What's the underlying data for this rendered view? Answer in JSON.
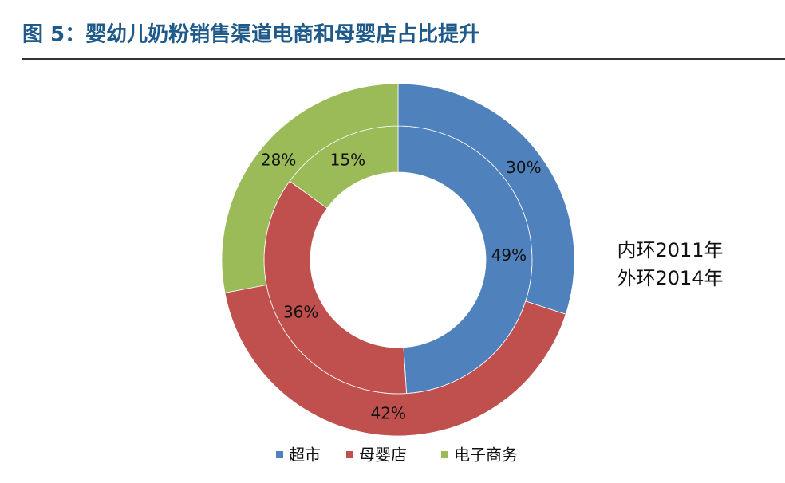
{
  "chart_data": {
    "type": "donut",
    "title": "图 5：婴幼儿奶粉销售渠道电商和母婴店占比提升",
    "categories": [
      "超市",
      "母婴店",
      "电子商务"
    ],
    "colors": [
      "#4f81bd",
      "#c0504d",
      "#9bbb59"
    ],
    "series": [
      {
        "name": "内环2011年",
        "values": [
          49,
          36,
          15
        ],
        "value_labels": [
          "49%",
          "36%",
          "15%"
        ]
      },
      {
        "name": "外环2014年",
        "values": [
          30,
          42,
          28
        ],
        "value_labels": [
          "30%",
          "42%",
          "28%"
        ]
      }
    ],
    "legend": "bottom"
  }
}
